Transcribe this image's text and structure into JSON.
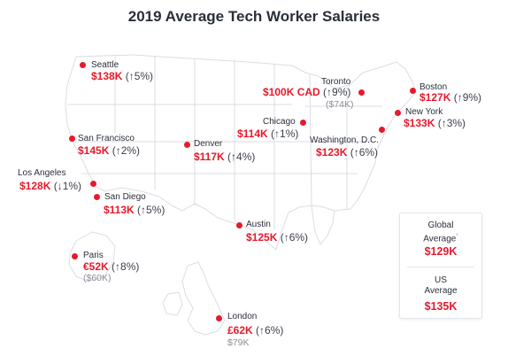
{
  "title": "2019 Average Tech Worker Salaries",
  "colors": {
    "accent": "#e8192c",
    "map_fill": "#ffffff",
    "map_stroke": "#dadde3",
    "background": "#ffffff"
  },
  "cities": [
    {
      "name": "Seattle",
      "salary": "$138K",
      "change": "(↑5%)"
    },
    {
      "name": "Toronto",
      "salary": "$100K CAD",
      "change": "(↑9%)",
      "sub": "($74K)"
    },
    {
      "name": "Boston",
      "salary": "$127K",
      "change": "(↑9%)"
    },
    {
      "name": "New York",
      "salary": "$133K",
      "change": "(↑3%)"
    },
    {
      "name": "Chicago",
      "salary": "$114K",
      "change": "(↑1%)"
    },
    {
      "name": "Washington, D.C.",
      "salary": "$123K",
      "change": "(↑6%)"
    },
    {
      "name": "San Francisco",
      "salary": "$145K",
      "change": "(↑2%)"
    },
    {
      "name": "Denver",
      "salary": "$117K",
      "change": "(↑4%)"
    },
    {
      "name": "Los Angeles",
      "salary": "$128K",
      "change": "(↓1%)"
    },
    {
      "name": "San Diego",
      "salary": "$113K",
      "change": "(↑5%)"
    },
    {
      "name": "Austin",
      "salary": "$125K",
      "change": "(↑6%)"
    },
    {
      "name": "Paris",
      "salary": "€52K",
      "change": "(↑8%)",
      "sub": "($60K)"
    },
    {
      "name": "London",
      "salary": "£62K",
      "change": "(↑6%)",
      "sub": "$79K"
    }
  ],
  "summary": {
    "global_label_1": "Global",
    "global_label_2": "Average",
    "global_marker": "*",
    "global_value": "$129K",
    "us_label_1": "US",
    "us_label_2": "Average",
    "us_value": "$135K"
  }
}
